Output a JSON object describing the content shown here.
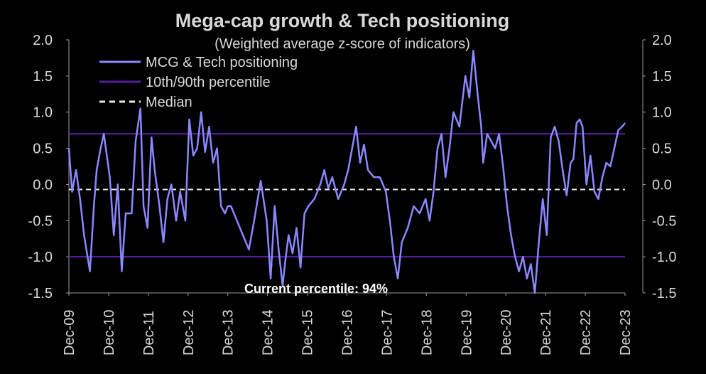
{
  "chart_data": {
    "type": "line",
    "title": "Mega-cap growth & Tech positioning",
    "subtitle": "(Weighted average z-score of indicators)",
    "ylim": [
      -1.5,
      2.0
    ],
    "y_ticks": [
      "2.0",
      "1.5",
      "1.0",
      "0.5",
      "0.0",
      "-0.5",
      "-1.0",
      "-1.5"
    ],
    "x_ticks": [
      "Dec-09",
      "Dec-10",
      "Dec-11",
      "Dec-12",
      "Dec-13",
      "Dec-14",
      "Dec-15",
      "Dec-16",
      "Dec-17",
      "Dec-18",
      "Dec-19",
      "Dec-20",
      "Dec-21",
      "Dec-22",
      "Dec-23"
    ],
    "x_range": [
      2009.92,
      2023.92
    ],
    "series": [
      {
        "name": "MCG & Tech positioning",
        "color": "#8b88ff",
        "x": [
          2009.92,
          2010.0,
          2010.1,
          2010.2,
          2010.3,
          2010.45,
          2010.55,
          2010.62,
          2010.72,
          2010.8,
          2010.95,
          2011.05,
          2011.15,
          2011.25,
          2011.35,
          2011.5,
          2011.6,
          2011.72,
          2011.8,
          2011.9,
          2012.0,
          2012.08,
          2012.2,
          2012.3,
          2012.4,
          2012.5,
          2012.62,
          2012.72,
          2012.85,
          2012.95,
          2013.05,
          2013.15,
          2013.25,
          2013.35,
          2013.45,
          2013.55,
          2013.65,
          2013.75,
          2013.85,
          2013.92,
          2014.0,
          2014.15,
          2014.3,
          2014.45,
          2014.6,
          2014.75,
          2014.9,
          2015.0,
          2015.1,
          2015.2,
          2015.3,
          2015.38,
          2015.45,
          2015.55,
          2015.65,
          2015.75,
          2015.85,
          2015.95,
          2016.1,
          2016.25,
          2016.35,
          2016.45,
          2016.55,
          2016.7,
          2016.85,
          2016.95,
          2017.05,
          2017.15,
          2017.25,
          2017.35,
          2017.45,
          2017.6,
          2017.75,
          2017.9,
          2018.0,
          2018.1,
          2018.2,
          2018.3,
          2018.45,
          2018.6,
          2018.75,
          2018.9,
          2019.0,
          2019.1,
          2019.2,
          2019.3,
          2019.4,
          2019.5,
          2019.6,
          2019.75,
          2019.9,
          2020.0,
          2020.1,
          2020.2,
          2020.3,
          2020.35,
          2020.45,
          2020.55,
          2020.65,
          2020.75,
          2020.85,
          2020.95,
          2021.05,
          2021.15,
          2021.25,
          2021.35,
          2021.45,
          2021.55,
          2021.65,
          2021.75,
          2021.85,
          2021.95,
          2022.05,
          2022.15,
          2022.25,
          2022.35,
          2022.45,
          2022.55,
          2022.62,
          2022.7,
          2022.78,
          2022.85,
          2022.95,
          2023.05,
          2023.15,
          2023.25,
          2023.35,
          2023.45,
          2023.55,
          2023.65,
          2023.75,
          2023.85,
          2023.92
        ],
        "values": [
          0.5,
          -0.1,
          0.2,
          -0.2,
          -0.7,
          -1.2,
          -0.3,
          0.2,
          0.5,
          0.7,
          0.1,
          -0.7,
          0.0,
          -1.2,
          -0.4,
          -0.4,
          0.6,
          1.05,
          -0.3,
          -0.6,
          0.65,
          0.2,
          -0.3,
          -0.8,
          -0.2,
          0.0,
          -0.5,
          -0.1,
          -0.5,
          0.9,
          0.4,
          0.5,
          1.0,
          0.45,
          0.8,
          0.3,
          0.5,
          -0.3,
          -0.4,
          -0.3,
          -0.3,
          -0.5,
          -0.7,
          -0.9,
          -0.45,
          0.05,
          -0.5,
          -1.3,
          -0.3,
          -0.9,
          -1.4,
          -1.0,
          -0.7,
          -0.95,
          -0.6,
          -1.15,
          -0.4,
          -0.3,
          -0.2,
          0.0,
          0.2,
          -0.05,
          0.1,
          -0.2,
          0.0,
          0.2,
          0.5,
          0.8,
          0.3,
          0.55,
          0.2,
          0.1,
          0.1,
          -0.1,
          -0.5,
          -1.0,
          -1.3,
          -0.8,
          -0.6,
          -0.3,
          -0.4,
          -0.2,
          -0.5,
          -0.1,
          0.5,
          0.7,
          0.1,
          0.5,
          1.0,
          0.8,
          1.5,
          1.2,
          1.85,
          1.3,
          0.8,
          0.3,
          0.7,
          0.6,
          0.5,
          0.7,
          0.25,
          -0.3,
          -0.7,
          -1.0,
          -1.2,
          -1.0,
          -1.3,
          -1.1,
          -1.5,
          -0.8,
          -0.2,
          -0.7,
          0.65,
          0.8,
          0.6,
          0.2,
          -0.15,
          0.3,
          0.35,
          0.85,
          0.9,
          0.8,
          0.0,
          0.4,
          -0.1,
          -0.2,
          0.1,
          0.3,
          0.25,
          0.5,
          0.75,
          0.8,
          0.85
        ]
      },
      {
        "name": "10th/90th percentile",
        "color": "#5a1fa8",
        "lines": [
          0.7,
          -1.0
        ]
      },
      {
        "name": "Median",
        "color": "#e8e8e8",
        "value": -0.07
      }
    ],
    "annotation": "Current percentile: 94%",
    "legend_placement": "top-left",
    "grid": false
  }
}
